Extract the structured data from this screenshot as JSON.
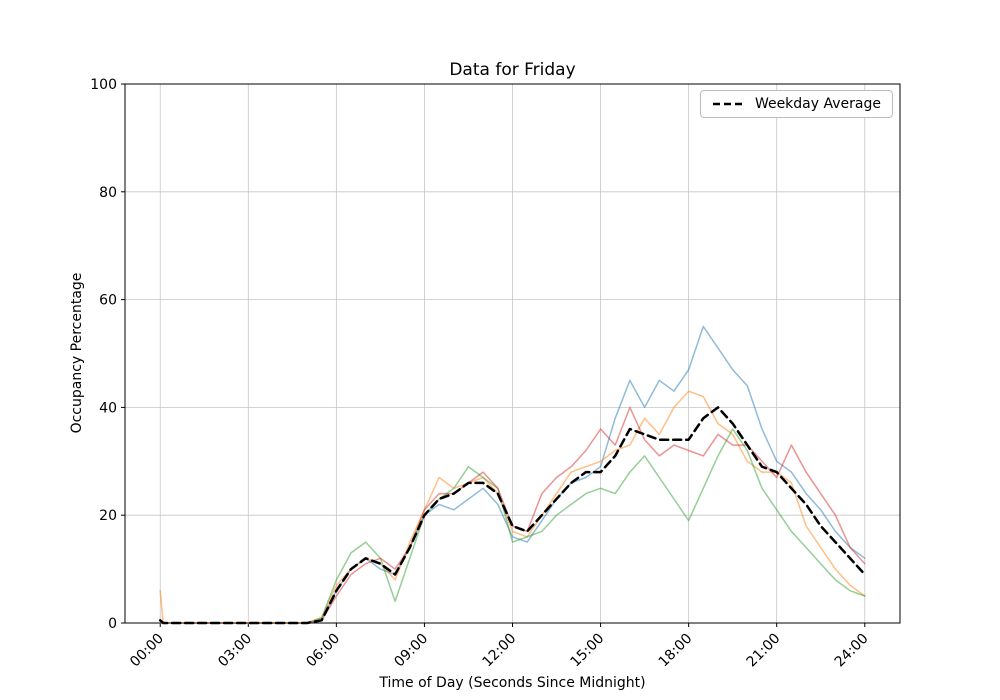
{
  "chart_data": {
    "type": "line",
    "title": "Data for Friday",
    "xlabel": "Time of Day (Seconds Since Midnight)",
    "ylabel": "Occupancy Percentage",
    "grid": true,
    "xlim_hours": [
      -1.2,
      25.2
    ],
    "ylim": [
      0,
      100
    ],
    "xticks": {
      "hours": [
        0,
        3,
        6,
        9,
        12,
        15,
        18,
        21,
        24
      ],
      "labels": [
        "00:00",
        "03:00",
        "06:00",
        "09:00",
        "12:00",
        "15:00",
        "18:00",
        "21:00",
        "24:00"
      ]
    },
    "yticks": [
      0,
      20,
      40,
      60,
      80,
      100
    ],
    "colors": {
      "grid": "#c6c6c6",
      "frame": "#000000",
      "series_blue": "#1f77b4",
      "series_orange": "#ff7f0e",
      "series_green": "#2ca02c",
      "series_red": "#d62728",
      "average": "#000000"
    },
    "x": [
      0,
      0.1,
      0.5,
      1,
      1.5,
      2,
      2.5,
      3,
      3.5,
      4,
      4.5,
      5,
      5.5,
      6,
      6.5,
      7,
      7.5,
      8,
      8.5,
      9,
      9.5,
      10,
      10.5,
      11,
      11.5,
      12,
      12.5,
      13,
      13.5,
      14,
      14.5,
      15,
      15.5,
      16,
      16.5,
      17,
      17.5,
      18,
      18.5,
      19,
      19.5,
      20,
      20.5,
      21,
      21.5,
      22,
      22.5,
      23,
      23.5,
      24
    ],
    "series": [
      {
        "id": "line-1",
        "color": "#1f77b4",
        "opacity": 0.5,
        "width": 1.5,
        "dash": "",
        "values": [
          0,
          0,
          0,
          0,
          0,
          0,
          0,
          0,
          0,
          0,
          0,
          0,
          0.5,
          6,
          10,
          12,
          10,
          9,
          14,
          20,
          22,
          21,
          23,
          25,
          22,
          16,
          15,
          19,
          23,
          26,
          27,
          29,
          38,
          45,
          40,
          45,
          43,
          47,
          55,
          51,
          47,
          44,
          36,
          30,
          28,
          24,
          21,
          17,
          14,
          12
        ]
      },
      {
        "id": "line-2",
        "color": "#ff7f0e",
        "opacity": 0.5,
        "width": 1.5,
        "dash": "",
        "values": [
          6,
          0,
          0,
          0,
          0,
          0,
          0,
          0,
          0,
          0,
          0,
          0,
          1,
          7,
          10,
          12,
          11,
          8,
          15,
          21,
          27,
          25,
          26,
          27,
          24,
          17,
          16,
          20,
          24,
          28,
          29,
          30,
          32,
          33,
          38,
          35,
          40,
          43,
          42,
          37,
          35,
          30,
          28,
          28,
          26,
          18,
          14,
          10,
          7,
          5
        ]
      },
      {
        "id": "line-3",
        "color": "#2ca02c",
        "opacity": 0.5,
        "width": 1.5,
        "dash": "",
        "values": [
          0,
          0,
          0,
          0,
          0,
          0,
          0,
          0,
          0,
          0,
          0,
          0,
          1,
          8,
          13,
          15,
          12,
          4,
          12,
          20,
          23,
          25,
          29,
          27,
          25,
          15,
          16,
          17,
          20,
          22,
          24,
          25,
          24,
          28,
          31,
          27,
          23,
          19,
          25,
          31,
          36,
          32,
          25,
          21,
          17,
          14,
          11,
          8,
          6,
          5
        ]
      },
      {
        "id": "line-4",
        "color": "#d62728",
        "opacity": 0.5,
        "width": 1.5,
        "dash": "",
        "values": [
          0,
          0,
          0,
          0,
          0,
          0,
          0,
          0,
          0,
          0,
          0,
          0,
          0.5,
          5,
          9,
          11,
          12,
          10,
          14,
          21,
          24,
          24,
          26,
          28,
          25,
          18,
          17,
          24,
          27,
          29,
          32,
          36,
          33,
          40,
          34,
          31,
          33,
          32,
          31,
          35,
          33,
          33,
          30,
          27,
          33,
          28,
          24,
          20,
          14,
          11
        ]
      },
      {
        "id": "weekday-average",
        "color": "#000000",
        "opacity": 1,
        "width": 2.5,
        "dash": "8 5",
        "values": [
          0.5,
          0,
          0,
          0,
          0,
          0,
          0,
          0,
          0,
          0,
          0,
          0,
          0.5,
          6,
          10,
          12,
          11,
          9,
          14,
          20,
          23,
          24,
          26,
          26,
          24,
          18,
          17,
          20,
          23,
          26,
          28,
          28,
          31,
          36,
          35,
          34,
          34,
          34,
          38,
          40,
          37,
          33,
          29,
          28,
          25,
          22,
          18,
          15,
          12,
          9
        ]
      }
    ],
    "legend": {
      "position": "upper right",
      "entries": [
        {
          "label": "Weekday Average",
          "color": "#000000",
          "dash": "7 4"
        }
      ]
    }
  }
}
